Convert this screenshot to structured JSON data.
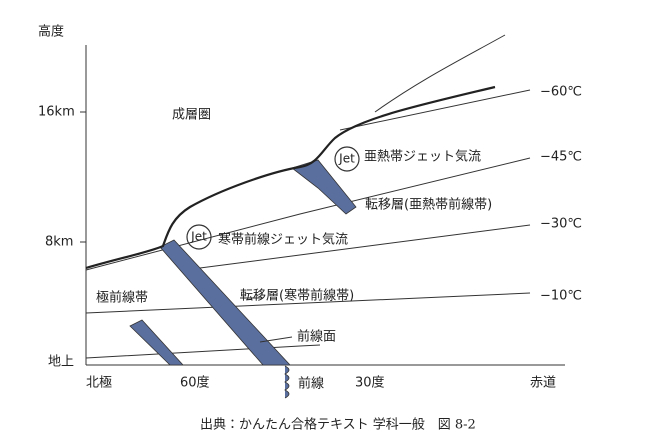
{
  "axis": {
    "y_title": "高度",
    "y_labels": [
      "16km",
      "8km",
      "地上"
    ],
    "x_labels": [
      "北極",
      "60度",
      "30度",
      "赤道"
    ]
  },
  "regions": {
    "stratosphere": "成層圏",
    "polar_front_zone": "極前線帯"
  },
  "jets": [
    {
      "badge": "Jet",
      "label": "亜熱帯ジェット気流"
    },
    {
      "badge": "Jet",
      "label": "寒帯前線ジェット気流"
    }
  ],
  "zones": {
    "subtropical_transition": "転移層(亜熱帯前線帯)",
    "polar_transition": "転移層(寒帯前線帯)",
    "front_surface": "前線面",
    "front": "前線"
  },
  "isotherms": [
    "−60℃",
    "−45℃",
    "−30℃",
    "−10℃"
  ],
  "caption": "出典：かんたん合格テキスト 学科一般　図 8-2"
}
